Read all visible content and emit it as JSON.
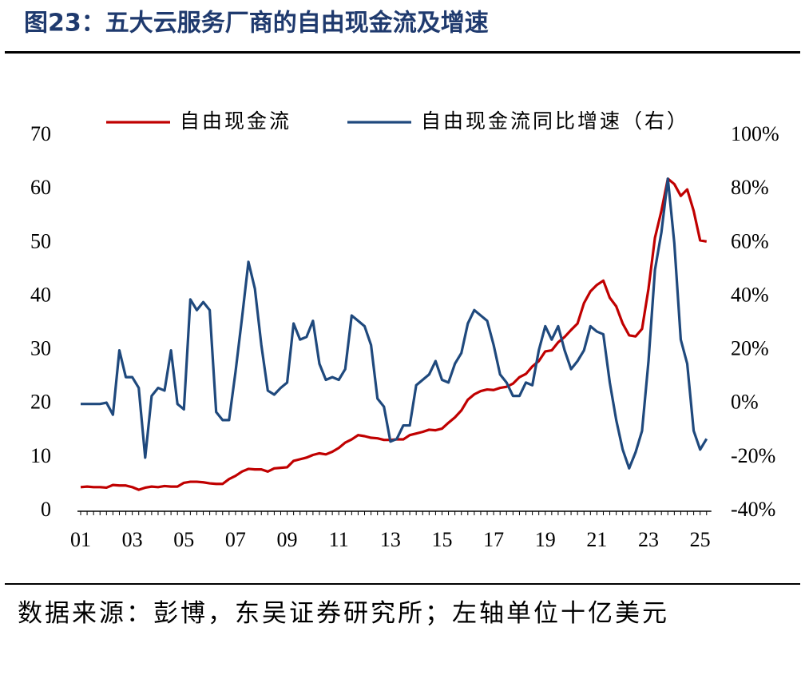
{
  "chart_data": {
    "type": "line",
    "title": "图23：五大云服务厂商的自由现金流及增速",
    "source": "数据来源：彭博，东吴证券研究所；左轴单位十亿美元",
    "categories": [
      "01",
      null,
      null,
      null,
      null,
      null,
      null,
      null,
      "03",
      null,
      null,
      null,
      null,
      null,
      null,
      null,
      "05",
      null,
      null,
      null,
      null,
      null,
      null,
      null,
      "07",
      null,
      null,
      null,
      null,
      null,
      null,
      null,
      "09",
      null,
      null,
      null,
      null,
      null,
      null,
      null,
      "11",
      null,
      null,
      null,
      null,
      null,
      null,
      null,
      "13",
      null,
      null,
      null,
      null,
      null,
      null,
      null,
      "15",
      null,
      null,
      null,
      null,
      null,
      null,
      null,
      "17",
      null,
      null,
      null,
      null,
      null,
      null,
      null,
      "19",
      null,
      null,
      null,
      null,
      null,
      null,
      null,
      "21",
      null,
      null,
      null,
      null,
      null,
      null,
      null,
      "23",
      null,
      null,
      null,
      null,
      null,
      null,
      null,
      "25",
      null
    ],
    "series": [
      {
        "name": "自由现金流",
        "color": "#c00000",
        "values": [
          4.5,
          4.6,
          4.5,
          4.5,
          4.4,
          4.9,
          4.8,
          4.8,
          4.5,
          4.0,
          4.4,
          4.6,
          4.5,
          4.7,
          4.6,
          4.6,
          5.3,
          5.5,
          5.5,
          5.4,
          5.2,
          5.1,
          5.1,
          6.0,
          6.6,
          7.4,
          7.9,
          7.8,
          7.8,
          7.4,
          8.0,
          8.1,
          8.2,
          9.4,
          9.7,
          10.0,
          10.5,
          10.8,
          10.6,
          11.1,
          11.8,
          12.8,
          13.4,
          14.2,
          14.0,
          13.7,
          13.6,
          13.3,
          13.3,
          13.4,
          13.4,
          14.2,
          14.5,
          14.8,
          15.2,
          15.1,
          15.4,
          16.5,
          17.5,
          18.8,
          20.8,
          21.8,
          22.4,
          22.7,
          22.6,
          23.0,
          23.2,
          23.8,
          25.0,
          25.6,
          27.0,
          28.0,
          29.8,
          30.0,
          31.5,
          32.5,
          33.8,
          35.0,
          38.8,
          41.0,
          42.2,
          43.0,
          39.8,
          38.2,
          35.0,
          32.8,
          32.6,
          34.0,
          41.5,
          51.0,
          56.0,
          62.0,
          61.0,
          58.8,
          60.0,
          56.0,
          50.5,
          50.3
        ]
      },
      {
        "name": "自由现金流同比增速（右）",
        "color": "#1f497d",
        "axis": "y2",
        "values": [
          0,
          0,
          0,
          0,
          0.5,
          -4,
          20,
          10,
          10,
          6,
          -20,
          3,
          6,
          5,
          20,
          0,
          -2,
          39,
          35,
          38,
          35,
          -3,
          -6,
          -6,
          12,
          32,
          53,
          43,
          22,
          5,
          3.5,
          6,
          8,
          30,
          24,
          25,
          31,
          15,
          9,
          10,
          9,
          13,
          33,
          31,
          29,
          22,
          2,
          -1,
          -14,
          -13,
          -8,
          -8,
          7,
          9,
          11,
          16,
          9,
          8,
          15,
          19,
          30,
          35,
          33,
          31,
          22,
          11,
          8,
          3,
          3,
          8,
          7,
          20,
          29,
          24,
          29,
          20,
          13,
          16,
          20,
          29,
          27,
          26,
          8,
          -6,
          -17,
          -24,
          -18,
          -10,
          16,
          50,
          64,
          84,
          60,
          24,
          15,
          -10,
          -17,
          -13
        ]
      }
    ],
    "ylim": [
      0,
      70
    ],
    "yticks": [
      0,
      10,
      20,
      30,
      40,
      50,
      60,
      70
    ],
    "y2lim": [
      -40,
      100
    ],
    "y2ticks": [
      {
        "value": -40,
        "label": "-40%"
      },
      {
        "value": -20,
        "label": "-20%"
      },
      {
        "value": 0,
        "label": "0%"
      },
      {
        "value": 20,
        "label": "20%"
      },
      {
        "value": 40,
        "label": "40%"
      },
      {
        "value": 60,
        "label": "60%"
      },
      {
        "value": 80,
        "label": "80%"
      },
      {
        "value": 100,
        "label": "100%"
      }
    ],
    "legend": "top"
  }
}
